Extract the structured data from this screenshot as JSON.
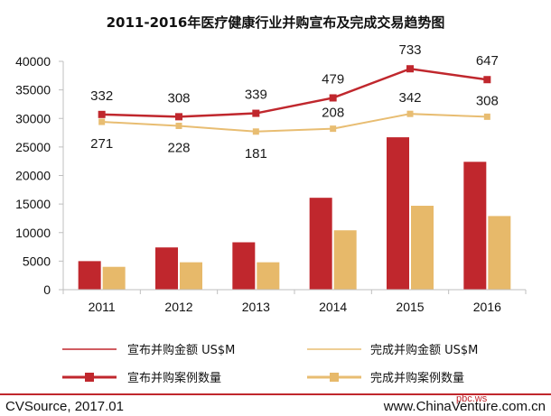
{
  "colors": {
    "red": "#c0272d",
    "tan": "#e7b96a",
    "tan_line": "#e8bd72",
    "axis": "#bfbfbf",
    "footer_line": "#c0272d"
  },
  "chart_data": {
    "type": "bar",
    "title": "2011-2016年医疗健康行业并购宣布及完成交易趋势图",
    "categories": [
      "2011",
      "2012",
      "2013",
      "2014",
      "2015",
      "2016"
    ],
    "ylim": [
      0,
      40000
    ],
    "yticks": [
      "0",
      "5000",
      "10000",
      "15000",
      "20000",
      "25000",
      "30000",
      "35000",
      "40000"
    ],
    "grid": false,
    "legend_position": "bottom",
    "series": [
      {
        "name": "宣布并购金额 US$M",
        "kind": "bar",
        "color": "#c0272d",
        "values": [
          5000,
          7400,
          8300,
          16100,
          26700,
          22400
        ]
      },
      {
        "name": "完成并购金额 US$M",
        "kind": "bar",
        "color": "#e7b96a",
        "values": [
          4000,
          4800,
          4800,
          10400,
          14700,
          12900
        ]
      },
      {
        "name": "宣布并购案例数量",
        "kind": "line",
        "color": "#c0272d",
        "values": [
          332,
          308,
          339,
          479,
          733,
          647
        ],
        "y_axis_level": [
          30700,
          30300,
          30900,
          33600,
          38700,
          36800
        ]
      },
      {
        "name": "完成并购案例数量",
        "kind": "line",
        "color": "#e8bd72",
        "values": [
          271,
          228,
          181,
          208,
          342,
          308
        ],
        "y_axis_level": [
          29400,
          28700,
          27700,
          28200,
          30800,
          30300
        ]
      }
    ],
    "point_labels": {
      "announced": [
        "332",
        "308",
        "339",
        "479",
        "733",
        "647"
      ],
      "completed": [
        "271",
        "228",
        "181",
        "208",
        "342",
        "308"
      ]
    }
  },
  "legend": {
    "item1": "宣布并购金额 US$M",
    "item2": "完成并购金额 US$M",
    "item3": "宣布并购案例数量",
    "item4": "完成并购案例数量"
  },
  "footer": {
    "source": "CVSource, 2017.01",
    "website": "www.ChinaVenture.com.cn",
    "watermark": "pbc.ws"
  }
}
